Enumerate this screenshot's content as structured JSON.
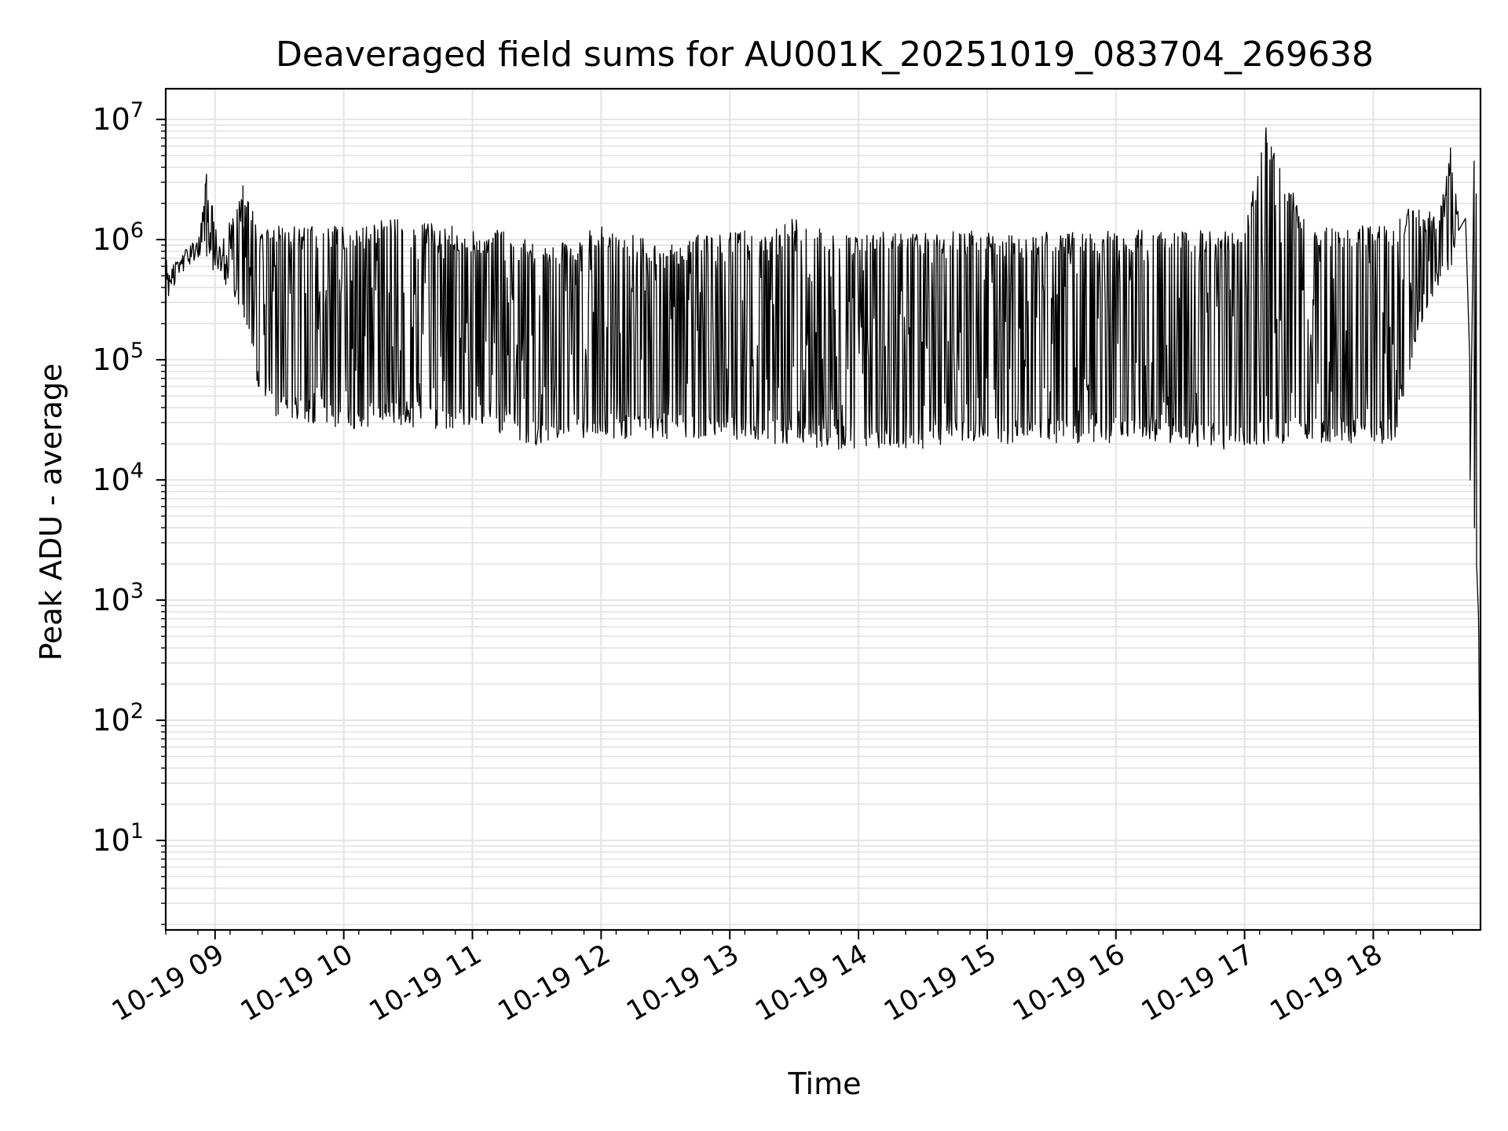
{
  "chart_data": {
    "type": "line",
    "title": "Deaveraged field sums for AU001K_20251019_083704_269638",
    "xlabel": "Time",
    "ylabel": "Peak ADU - average",
    "xlim": [
      "2025-10-19 08:37",
      "2025-10-19 18:50"
    ],
    "ylim": [
      1.8,
      18000000
    ],
    "yscale": "log",
    "grid": true,
    "line_color": "#000000",
    "grid_color": "#e6e6e6",
    "x_ticks": [
      {
        "label": "10-19 09",
        "value": "2025-10-19 09:00"
      },
      {
        "label": "10-19 10",
        "value": "2025-10-19 10:00"
      },
      {
        "label": "10-19 11",
        "value": "2025-10-19 11:00"
      },
      {
        "label": "10-19 12",
        "value": "2025-10-19 12:00"
      },
      {
        "label": "10-19 13",
        "value": "2025-10-19 13:00"
      },
      {
        "label": "10-19 14",
        "value": "2025-10-19 14:00"
      },
      {
        "label": "10-19 15",
        "value": "2025-10-19 15:00"
      },
      {
        "label": "10-19 16",
        "value": "2025-10-19 16:00"
      },
      {
        "label": "10-19 17",
        "value": "2025-10-19 17:00"
      },
      {
        "label": "10-19 18",
        "value": "2025-10-19 18:00"
      }
    ],
    "y_ticks": [
      {
        "label": "10",
        "exp": "1",
        "value": 10
      },
      {
        "label": "10",
        "exp": "2",
        "value": 100
      },
      {
        "label": "10",
        "exp": "3",
        "value": 1000
      },
      {
        "label": "10",
        "exp": "4",
        "value": 10000
      },
      {
        "label": "10",
        "exp": "5",
        "value": 100000
      },
      {
        "label": "10",
        "exp": "6",
        "value": 1000000
      },
      {
        "label": "10",
        "exp": "7",
        "value": 10000000
      }
    ],
    "series": [
      {
        "x": [
          "2025-10-19 08:37",
          "2025-10-19 08:45",
          "2025-10-19 08:52",
          "2025-10-19 08:56",
          "2025-10-19 09:02",
          "2025-10-19 09:10",
          "2025-10-19 09:14",
          "2025-10-19 09:20",
          "2025-10-19 09:30",
          "2025-10-19 09:40",
          "2025-10-19 09:55",
          "2025-10-19 10:05",
          "2025-10-19 10:20",
          "2025-10-19 10:30",
          "2025-10-19 10:40",
          "2025-10-19 10:50",
          "2025-10-19 11:00",
          "2025-10-19 11:15",
          "2025-10-19 11:30",
          "2025-10-19 11:45",
          "2025-10-19 12:00",
          "2025-10-19 12:15",
          "2025-10-19 12:30",
          "2025-10-19 12:45",
          "2025-10-19 13:00",
          "2025-10-19 13:15",
          "2025-10-19 13:30",
          "2025-10-19 13:45",
          "2025-10-19 14:00",
          "2025-10-19 14:15",
          "2025-10-19 14:30",
          "2025-10-19 14:45",
          "2025-10-19 15:00",
          "2025-10-19 15:15",
          "2025-10-19 15:30",
          "2025-10-19 15:45",
          "2025-10-19 16:00",
          "2025-10-19 16:15",
          "2025-10-19 16:30",
          "2025-10-19 16:45",
          "2025-10-19 17:00",
          "2025-10-19 17:10",
          "2025-10-19 17:30",
          "2025-10-19 17:45",
          "2025-10-19 18:00",
          "2025-10-19 18:10",
          "2025-10-19 18:20",
          "2025-10-19 18:30",
          "2025-10-19 18:36",
          "2025-10-19 18:40",
          "2025-10-19 18:43",
          "2025-10-19 18:45",
          "2025-10-19 18:47",
          "2025-10-19 18:48",
          "2025-10-19 18:49",
          "2025-10-19 18:50"
        ],
        "upper": [
          500000,
          800000,
          1100000,
          3500000,
          1200000,
          1800000,
          2800000,
          1300000,
          1300000,
          1300000,
          1300000,
          1300000,
          1500000,
          1500000,
          1400000,
          1300000,
          1200000,
          1200000,
          900000,
          1000000,
          1300000,
          1100000,
          900000,
          1100000,
          1200000,
          1200000,
          1500000,
          1200000,
          1100000,
          1200000,
          1200000,
          1200000,
          1200000,
          1100000,
          1200000,
          1200000,
          1200000,
          1200000,
          1200000,
          1200000,
          1200000,
          8500000,
          1200000,
          1300000,
          1300000,
          1400000,
          2100000,
          1500000,
          5800000,
          1600000,
          1500000,
          100000,
          4500000,
          2400000,
          800,
          4
        ],
        "lower": [
          400000,
          600000,
          700000,
          600000,
          500000,
          300000,
          200000,
          60000,
          30000,
          30000,
          28000,
          25000,
          30000,
          28000,
          26000,
          25000,
          26000,
          24000,
          18000,
          22000,
          22000,
          22000,
          22000,
          22000,
          22000,
          20000,
          20000,
          18000,
          17000,
          18000,
          18000,
          19000,
          19000,
          20000,
          20000,
          20000,
          20000,
          20000,
          20000,
          18000,
          18000,
          20000,
          20000,
          20000,
          20000,
          20000,
          150000,
          400000,
          500000,
          1300000,
          1200000,
          10000,
          4000,
          2000,
          500,
          4
        ]
      }
    ]
  }
}
